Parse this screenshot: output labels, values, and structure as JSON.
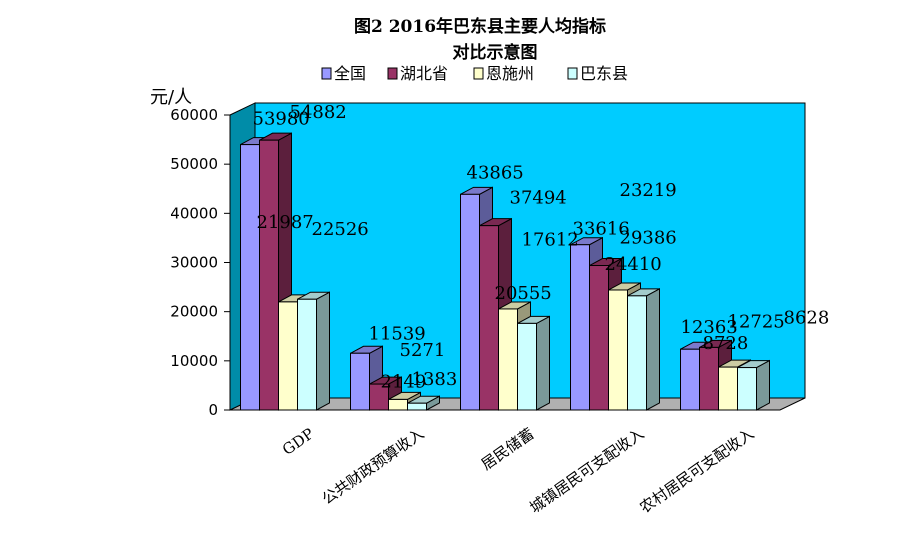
{
  "chart_data": {
    "type": "bar",
    "title_line1": "图2    2016年巴东县主要人均指标",
    "title_line2": "对比示意图",
    "ylabel": "元/人",
    "ylim": [
      0,
      60000
    ],
    "yticks": [
      "0",
      "10000",
      "20000",
      "30000",
      "40000",
      "50000",
      "60000"
    ],
    "grid": false,
    "legend_position": "top",
    "categories": [
      "GDP",
      "公共财政预算收入",
      "居民储蓄",
      "城镇居民可支配收入",
      "农村居民可支配收入"
    ],
    "series": [
      {
        "name": "全国",
        "color": "#9999ff",
        "values": [
          53980,
          11539,
          43865,
          33616,
          12363
        ]
      },
      {
        "name": "湖北省",
        "color": "#993366",
        "values": [
          54882,
          5271,
          37494,
          29386,
          12725
        ]
      },
      {
        "name": "恩施州",
        "color": "#ffffcc",
        "values": [
          21987,
          2149,
          20555,
          24410,
          8728
        ]
      },
      {
        "name": "巴东县",
        "color": "#ccffff",
        "values": [
          22526,
          1383,
          17612,
          23219,
          8628
        ]
      }
    ],
    "data_labels": [
      [
        "53980",
        "11539",
        "43865",
        "33616",
        "12363"
      ],
      [
        "54882",
        "5271",
        "37494",
        "29386",
        "12725"
      ],
      [
        "21987",
        "2149",
        "20555",
        "24410",
        "8728"
      ],
      [
        "22526",
        "1383",
        "17612",
        "23219",
        "8628"
      ]
    ],
    "colors": {
      "back_wall": "#00ccff",
      "side_wall": "#008ca8",
      "floor": "#b0b0b0"
    }
  }
}
